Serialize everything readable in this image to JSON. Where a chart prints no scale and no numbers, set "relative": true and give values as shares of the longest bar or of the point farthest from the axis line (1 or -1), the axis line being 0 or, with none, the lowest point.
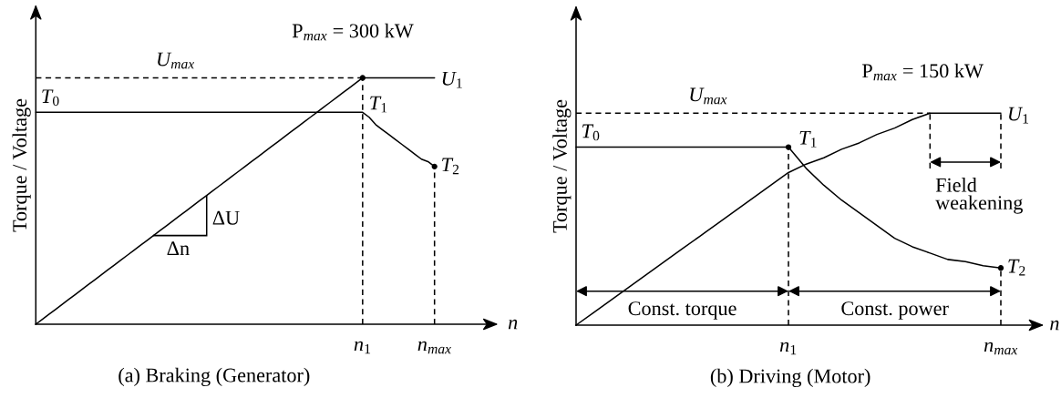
{
  "chart_data": [
    {
      "type": "line",
      "title": "(a) Braking (Generator)",
      "xlabel": "n",
      "ylabel": "Torque / Voltage",
      "relative": true,
      "tick_labels": "x",
      "categories": [
        null,
        null,
        null,
        null,
        null,
        null,
        null,
        null,
        null,
        null,
        null,
        null,
        null,
        null,
        null,
        null,
        null,
        null,
        null,
        null,
        null,
        null,
        null,
        null,
        null,
        null,
        null,
        null,
        null,
        null,
        null,
        null,
        null,
        null,
        null,
        null,
        null,
        null,
        null,
        null,
        null,
        null,
        null,
        null,
        null,
        null,
        null,
        null,
        null,
        null,
        "n$_{1}$",
        null,
        null,
        null,
        null,
        null,
        null,
        null,
        null,
        null,
        null,
        "n$_{max}$"
      ],
      "series": [
        {
          "color": "#000000",
          "values": [
            0,
            0.02,
            0.04,
            0.06,
            0.08,
            0.1,
            0.12,
            0.14,
            0.16,
            0.18,
            0.2,
            0.22,
            0.24,
            0.26,
            0.28,
            0.3,
            0.32,
            0.34,
            0.36,
            0.38,
            0.4,
            0.42,
            0.44,
            0.46,
            0.48,
            0.5,
            0.52,
            0.54,
            0.56,
            0.58,
            0.6,
            0.62,
            0.64,
            0.66,
            0.68,
            0.7,
            0.72,
            0.74,
            0.76,
            0.78,
            0.8,
            0.82,
            0.84,
            0.86,
            0.88,
            0.9,
            0.92,
            0.94,
            0.96,
            0.98,
            1,
            1,
            1,
            1,
            1,
            1,
            1,
            1,
            1,
            1,
            1,
            1
          ]
        },
        {
          "color": "#000000",
          "values": [
            0.86,
            0.86,
            0.86,
            0.86,
            0.86,
            0.86,
            0.86,
            0.86,
            0.86,
            0.86,
            0.86,
            0.86,
            0.86,
            0.86,
            0.86,
            0.86,
            0.86,
            0.86,
            0.86,
            0.86,
            0.86,
            0.86,
            0.86,
            0.86,
            0.86,
            0.86,
            0.86,
            0.86,
            0.86,
            0.86,
            0.86,
            0.86,
            0.86,
            0.86,
            0.86,
            0.86,
            0.86,
            0.86,
            0.86,
            0.86,
            0.86,
            0.86,
            0.86,
            0.86,
            0.86,
            0.86,
            0.86,
            0.86,
            0.86,
            0.86,
            0.86,
            0.84,
            0.81,
            0.79,
            0.77,
            0.75,
            0.73,
            0.71,
            0.69,
            0.67,
            0.66,
            0.64
          ]
        },
        {
          "color": "#000000",
          "line_style": "dashed",
          "values": [
            1,
            1,
            1,
            1,
            1,
            1,
            1,
            1,
            1,
            1,
            1,
            1,
            1,
            1,
            1,
            1,
            1,
            1,
            1,
            1,
            1,
            1,
            1,
            1,
            1,
            1,
            1,
            1,
            1,
            1,
            1,
            1,
            1,
            1,
            1,
            1,
            1,
            1,
            1,
            1,
            1,
            1,
            1,
            1,
            1,
            1,
            1,
            1,
            1,
            1,
            1,
            null,
            null,
            null,
            null,
            null,
            null,
            null,
            null,
            null,
            null,
            null
          ]
        },
        {
          "type": "lollipop",
          "color": "#000000",
          "line_style": "dashed",
          "marker": "circle",
          "values": [
            null,
            null,
            null,
            null,
            null,
            null,
            null,
            null,
            null,
            null,
            null,
            null,
            null,
            null,
            null,
            null,
            null,
            null,
            null,
            null,
            null,
            null,
            null,
            null,
            null,
            null,
            null,
            null,
            null,
            null,
            null,
            null,
            null,
            null,
            null,
            null,
            null,
            null,
            null,
            null,
            null,
            null,
            null,
            null,
            null,
            null,
            null,
            null,
            null,
            null,
            1,
            null,
            null,
            null,
            null,
            null,
            null,
            null,
            null,
            null,
            null,
            0.64
          ]
        }
      ],
      "annotations": [
        "P$_{max}$ = 300 kW",
        "ΔU",
        "Δn",
        {
          "text": "U$_{max}$",
          "y": 1
        },
        {
          "text": "U$_{1}$",
          "x": "n$_{max}$",
          "y": 1
        },
        {
          "text": "T$_{0}$",
          "y": 0.86
        },
        {
          "text": "T$_{1}$",
          "x": "n$_{1}$",
          "y": 0.86
        },
        {
          "text": "T$_{2}$",
          "x": "n$_{max}$",
          "y": 0.64
        }
      ]
    },
    {
      "type": "line",
      "title": "(b) Driving (Motor)",
      "xlabel": "n",
      "ylabel": "Torque / Voltage",
      "relative": true,
      "tick_labels": "x",
      "categories": [
        null,
        null,
        null,
        null,
        null,
        null,
        null,
        null,
        null,
        null,
        null,
        null,
        "n$_{1}$",
        null,
        null,
        null,
        null,
        null,
        null,
        null,
        null,
        null,
        null,
        null,
        "n$_{max}$"
      ],
      "series": [
        {
          "color": "#000000",
          "values": [
            0,
            0.06,
            0.12,
            0.18,
            0.24,
            0.3,
            0.36,
            0.42,
            0.48,
            0.54,
            0.6,
            0.66,
            0.72,
            0.76,
            0.79,
            0.83,
            0.86,
            0.9,
            0.93,
            0.97,
            1,
            1,
            1,
            1,
            1
          ]
        },
        {
          "color": "#000000",
          "values": [
            0.84,
            0.84,
            0.84,
            0.84,
            0.84,
            0.84,
            0.84,
            0.84,
            0.84,
            0.84,
            0.84,
            0.84,
            0.84,
            0.74,
            0.66,
            0.59,
            0.53,
            0.47,
            0.41,
            0.37,
            0.34,
            0.31,
            0.3,
            0.28,
            0.27
          ]
        },
        {
          "color": "#000000",
          "line_style": "dashed",
          "values": [
            1,
            1,
            1,
            1,
            1,
            1,
            1,
            1,
            1,
            1,
            1,
            1,
            1,
            1,
            1,
            1,
            1,
            1,
            1,
            1,
            1,
            null,
            null,
            null,
            null
          ]
        },
        {
          "type": "lollipop",
          "color": "#000000",
          "line_style": "dashed",
          "marker": "circle",
          "values": [
            null,
            null,
            null,
            null,
            null,
            null,
            null,
            null,
            null,
            null,
            null,
            null,
            0.84,
            null,
            null,
            null,
            null,
            null,
            null,
            null,
            null,
            null,
            null,
            null,
            0.27
          ]
        }
      ],
      "annotations": [
        "P$_{max}$ = 150 kW",
        "Const. torque",
        "Const. power",
        "Field\nweakening",
        {
          "text": "U$_{max}$",
          "y": 1
        },
        {
          "text": "U$_{1}$",
          "x": "n$_{max}$",
          "y": 1
        },
        {
          "text": "T$_{0}$",
          "y": 0.84
        },
        {
          "text": "T$_{1}$",
          "x": "n$_{1}$",
          "y": 0.84
        },
        {
          "text": "T$_{2}$",
          "x": "n$_{max}$",
          "y": 0.27
        }
      ]
    }
  ]
}
